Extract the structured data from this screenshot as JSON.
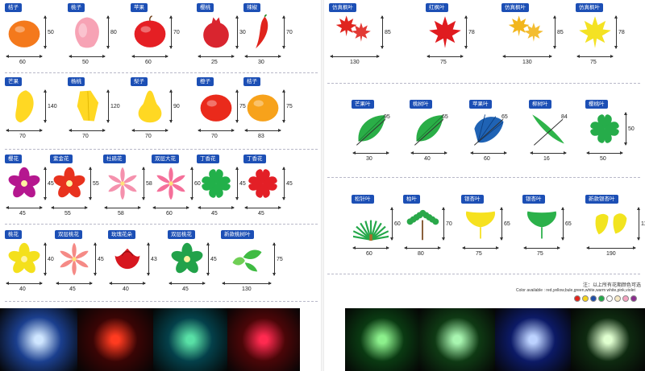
{
  "left": {
    "rows": [
      {
        "items": [
          {
            "tag": "桔子",
            "height": "50",
            "width": "60",
            "color": "#f4791c",
            "shape": "orange"
          },
          {
            "tag": "桃子",
            "height": "80",
            "width": "50",
            "color": "#f7a3b5",
            "shape": "peach"
          },
          {
            "tag": "苹果",
            "height": "70",
            "width": "60",
            "color": "#e51f24",
            "shape": "apple"
          },
          {
            "tag": "樱桃",
            "height": "30",
            "width": "25",
            "color": "#d9252f",
            "shape": "pomegranate"
          },
          {
            "tag": "辣椒",
            "height": "70",
            "width": "30",
            "color": "#e0241c",
            "shape": "pepper"
          }
        ]
      },
      {
        "items": [
          {
            "tag": "芒果",
            "height": "140",
            "width": "70",
            "color": "#ffd823",
            "shape": "mango"
          },
          {
            "tag": "杨桃",
            "height": "120",
            "width": "70",
            "color": "#ffd823",
            "shape": "starfruit"
          },
          {
            "tag": "梨子",
            "height": "90",
            "width": "70",
            "color": "#ffd823",
            "shape": "pear"
          },
          {
            "tag": "橙子",
            "height": "75",
            "width": "70",
            "color": "#ea2a1b",
            "shape": "orangeball"
          },
          {
            "tag": "桔子",
            "height": "75",
            "width": "83",
            "color": "#f7a21b",
            "shape": "orange2"
          }
        ]
      },
      {
        "items": [
          {
            "tag": "樱花",
            "height": "45",
            "width": "45",
            "color": "#b5178f",
            "shape": "flower5"
          },
          {
            "tag": "紫金花",
            "height": "55",
            "width": "55",
            "color": "#e8321e",
            "shape": "flower5"
          },
          {
            "tag": "杜鹃花",
            "height": "58",
            "width": "58",
            "color": "#f591ad",
            "shape": "lily"
          },
          {
            "tag": "双层大花",
            "height": "60",
            "width": "60",
            "color": "#f5709a",
            "shape": "lily"
          },
          {
            "tag": "丁香花",
            "height": "45",
            "width": "45",
            "color": "#22b04a",
            "shape": "clover"
          },
          {
            "tag": "丁香花",
            "height": "45",
            "width": "45",
            "color": "#e31f26",
            "shape": "clover"
          }
        ]
      },
      {
        "items": [
          {
            "tag": "桃花",
            "height": "40",
            "width": "40",
            "color": "#f4e01c",
            "shape": "flower5"
          },
          {
            "tag": "双层桃花",
            "height": "45",
            "width": "45",
            "color": "#f58a86",
            "shape": "lily"
          },
          {
            "tag": "玫瑰花朵",
            "height": "43",
            "width": "40",
            "color": "#d7171f",
            "shape": "rose"
          },
          {
            "tag": "双层桃花",
            "height": "45",
            "width": "45",
            "color": "#22a24a",
            "shape": "flower5"
          },
          {
            "tag": "新款桃树叶",
            "height": "75",
            "width": "130",
            "color": "#3fbb43",
            "shape": "leaves"
          }
        ]
      }
    ]
  },
  "right": {
    "rows": [
      {
        "items": [
          {
            "tag": "仿真枫叶",
            "height": "85",
            "width": "130",
            "color": "#e0251f",
            "shape": "maple2"
          },
          {
            "tag": "红枫叶",
            "height": "78",
            "width": "75",
            "color": "#e01b1f",
            "shape": "maple"
          },
          {
            "tag": "仿真枫叶",
            "height": "85",
            "width": "130",
            "color": "#f2b61c",
            "shape": "maple2"
          },
          {
            "tag": "仿真枫叶",
            "height": "78",
            "width": "75",
            "color": "#f4e223",
            "shape": "maple"
          }
        ]
      },
      {
        "items": [
          {
            "tag": "芒果叶",
            "diag": "95",
            "width": "30",
            "color": "#2aae47",
            "shape": "leaf"
          },
          {
            "tag": "桃树叶",
            "diag": "65",
            "width": "40",
            "color": "#2aae47",
            "shape": "leaf"
          },
          {
            "tag": "苹果叶",
            "diag": "65",
            "width": "60",
            "color": "#1f63b5",
            "shape": "fanleaf"
          },
          {
            "tag": "柳树叶",
            "diag": "84",
            "width": "16",
            "color": "#2fb44a",
            "shape": "willow"
          },
          {
            "tag": "樱桃叶",
            "height": "50",
            "width": "50",
            "color": "#26ac4a",
            "shape": "clover"
          }
        ]
      },
      {
        "items": [
          {
            "tag": "松针叶",
            "height": "60",
            "width": "60",
            "color": "#25a84a",
            "shape": "pine"
          },
          {
            "tag": "柏叶",
            "height": "70",
            "width": "80",
            "color": "#2aa84a",
            "shape": "cypress"
          },
          {
            "tag": "银杏叶",
            "height": "65",
            "width": "75",
            "color": "#f6e11f",
            "shape": "ginkgo"
          },
          {
            "tag": "银杏叶",
            "height": "65",
            "width": "75",
            "color": "#2bb14a",
            "shape": "ginkgo"
          },
          {
            "tag": "新款银杏叶",
            "height": "110",
            "width": "190",
            "color": "#f2e41f",
            "shape": "ginkgo2"
          }
        ]
      }
    ],
    "note_cn": "注：以上所有花期颜色可选",
    "note_en": "Color available : red,yellow,bule,green,white,warm white,pink,violet",
    "swatches": [
      "#e2231a",
      "#f6d31d",
      "#1f4ea8",
      "#23a84a",
      "#ffffff",
      "#f7e9c4",
      "#f4a3c0",
      "#8a2d8e"
    ]
  },
  "photos": [
    {
      "bg": "#1b3f8e",
      "glow": "#cfe6ff"
    },
    {
      "bg": "#3a0505",
      "glow": "#ff3b20"
    },
    {
      "bg": "#04404a",
      "glow": "#59e0a6"
    },
    {
      "bg": "#4b0608",
      "glow": "#ff2a50"
    },
    {
      "bg": "#0a3a12",
      "glow": "#8cf08c"
    },
    {
      "bg": "#0f3a14",
      "glow": "#a8f5b0"
    },
    {
      "bg": "#0c1a66",
      "glow": "#bcd2ff"
    },
    {
      "bg": "#0e2a10",
      "glow": "#e0ffd0"
    }
  ]
}
